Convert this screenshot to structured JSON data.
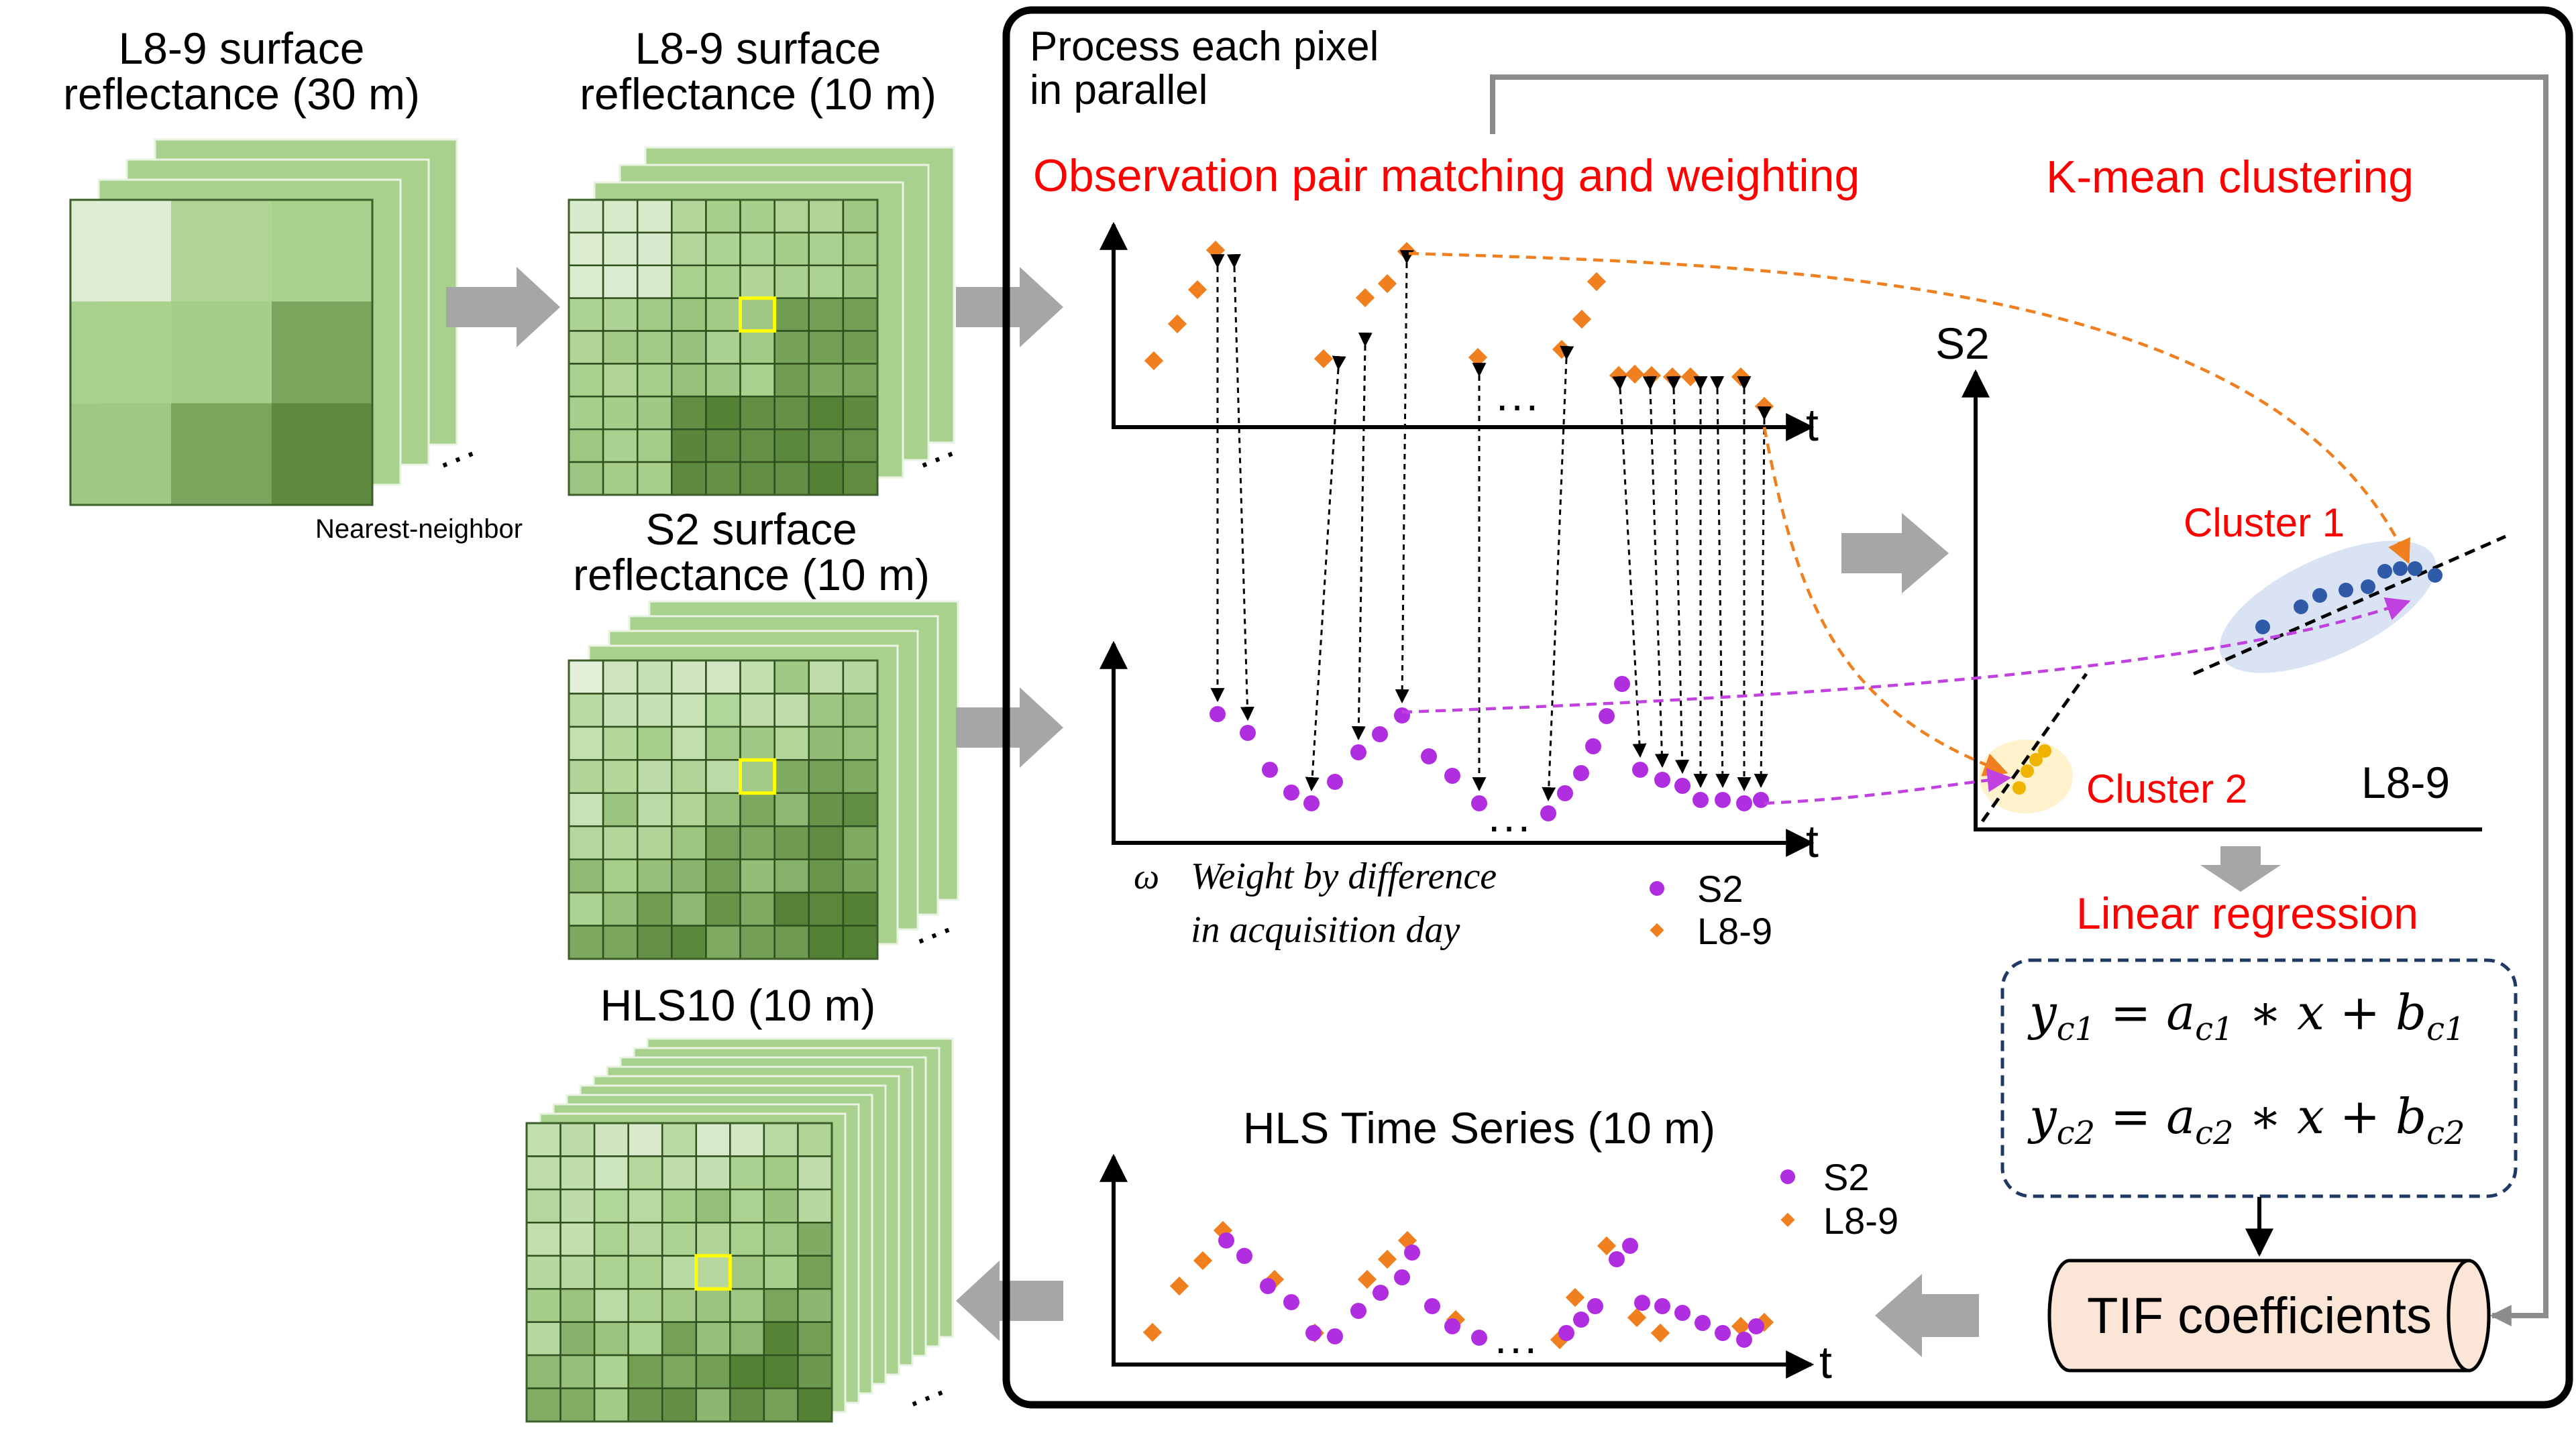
{
  "colors": {
    "s2": "#b02ee0",
    "l89": "#f07f1f",
    "red_text": "#ff0000",
    "panel_border": "#000000",
    "arrow_gray": "#a6a6a6",
    "green_light": "#e2f0d9",
    "green_mid": "#a9d18e",
    "green_dark": "#548235",
    "highlight": "#ffff00",
    "cluster1_fill": "#dae3f3",
    "cluster2_fill": "#fff2cc",
    "tif_fill": "#fbe5d6"
  },
  "left": {
    "stack1_title": [
      "L8-9 surface",
      "reflectance (30 m)"
    ],
    "stack2_title": [
      "L8-9 surface",
      "reflectance (10 m)"
    ],
    "resample_note": "Nearest-neighbor",
    "stack3_title": [
      "S2 surface",
      "reflectance (10 m)"
    ],
    "stack4_title": "HLS10 (10 m)",
    "ellipsis": "..."
  },
  "panel": {
    "title": [
      "Process each pixel",
      "in parallel"
    ],
    "matching_heading": "Observation pair matching and weighting",
    "clustering_heading": "K-mean clustering",
    "regression_heading": "Linear regression",
    "axis_t": "t",
    "ellipsis": "...",
    "weight_symbol": "ω",
    "weight_note": [
      "Weight by difference",
      "in acquisition day"
    ],
    "legend_s2": "S2",
    "legend_l89": "L8-9",
    "scatter_y_label": "S2",
    "scatter_x_label": "L8-9",
    "cluster1_label": "Cluster 1",
    "cluster2_label": "Cluster 2",
    "eq1": {
      "lhs": "y",
      "lhs_sub": "c1",
      "a": "a",
      "a_sub": "c1",
      "x": "x",
      "b": "b",
      "b_sub": "c1"
    },
    "eq2": {
      "lhs": "y",
      "lhs_sub": "c2",
      "a": "a",
      "a_sub": "c2",
      "x": "x",
      "b": "b",
      "b_sub": "c2"
    },
    "tif_label": "TIF coefficients",
    "hls_title": "HLS Time Series (10 m)"
  }
}
